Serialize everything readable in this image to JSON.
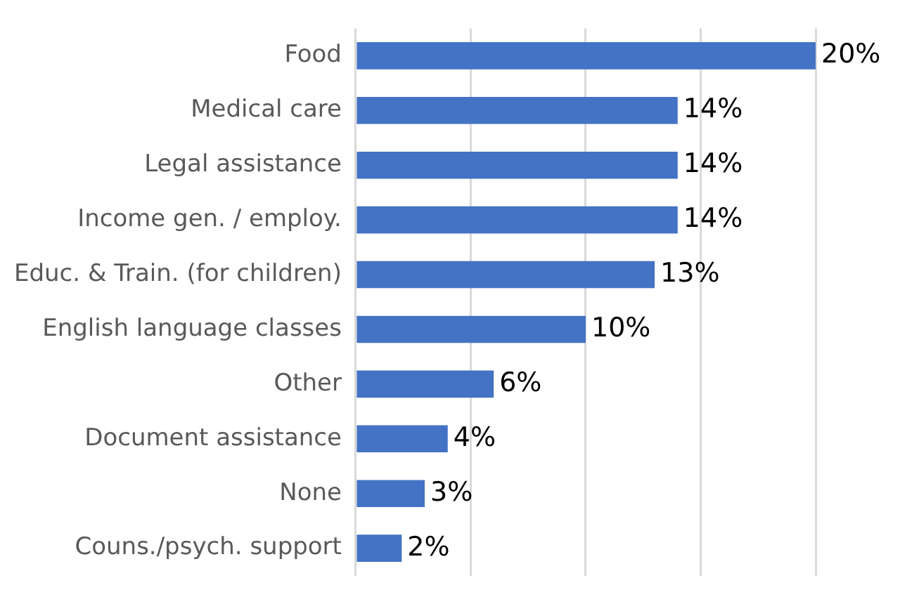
{
  "chart_data": {
    "type": "bar",
    "orientation": "horizontal",
    "categories": [
      "Food",
      "Medical care",
      "Legal assistance",
      "Income gen. / employ.",
      "Educ. & Train. (for children)",
      "English language classes",
      "Other",
      "Document assistance",
      "None",
      "Couns./psych. support"
    ],
    "values": [
      20,
      14,
      14,
      14,
      13,
      10,
      6,
      4,
      3,
      2
    ],
    "value_labels": [
      "20%",
      "14%",
      "14%",
      "14%",
      "13%",
      "10%",
      "6%",
      "4%",
      "3%",
      "2%"
    ],
    "color": "#4472c4",
    "xlim": [
      0,
      20
    ],
    "xticks": [
      {
        "value": 0,
        "label": null
      },
      {
        "value": 5,
        "label": null
      },
      {
        "value": 10,
        "label": null
      },
      {
        "value": 15,
        "label": null
      },
      {
        "value": 20,
        "label": null
      }
    ],
    "grid": "x",
    "tick_labels": "y"
  }
}
